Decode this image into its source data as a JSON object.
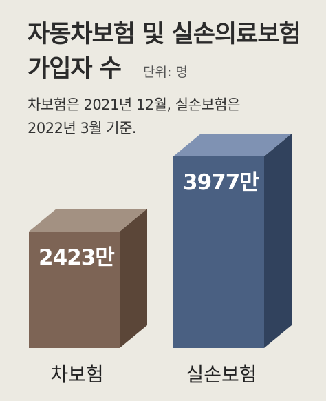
{
  "header": {
    "title_line1": "자동차보험 및 실손의료보험",
    "title_line2": "가입자 수",
    "unit": "단위: 명",
    "note_line1": "차보험은 2021년 12월, 실손보험은",
    "note_line2": "2022년 3월 기준."
  },
  "chart_data": {
    "type": "bar",
    "title": "자동차보험 및 실손의료보험 가입자 수",
    "categories": [
      "차보험",
      "실손보험"
    ],
    "values": [
      24230000,
      39770000
    ],
    "value_labels": [
      "2423만",
      "3977만"
    ],
    "unit": "단위: 명",
    "colors": {
      "front": [
        "#7d6455",
        "#4a6082"
      ],
      "top": [
        "#a39182",
        "#7f92b3"
      ],
      "side": [
        "#5b4638",
        "#31425d"
      ]
    },
    "grid": false,
    "legend": "none"
  }
}
